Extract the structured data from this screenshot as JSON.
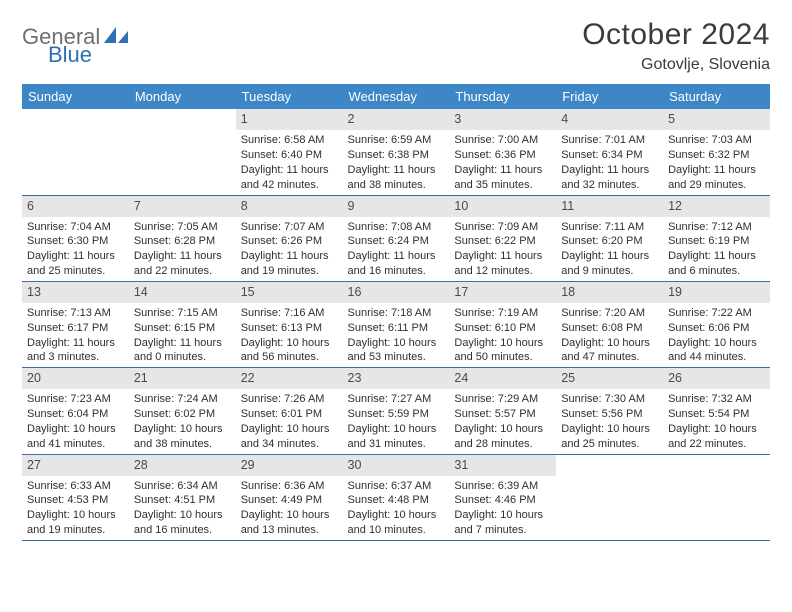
{
  "logo": {
    "part1": "General",
    "part2": "Blue"
  },
  "title": "October 2024",
  "subtitle": "Gotovlje, Slovenia",
  "colors": {
    "header_bg": "#3d87c7",
    "header_text": "#ffffff",
    "daynum_bg": "#e6e6e6",
    "row_border": "#3d6da3",
    "logo_gray": "#6f6f6f",
    "logo_blue": "#2f6fb3",
    "text": "#2f2f2f"
  },
  "day_headers": [
    "Sunday",
    "Monday",
    "Tuesday",
    "Wednesday",
    "Thursday",
    "Friday",
    "Saturday"
  ],
  "weeks": [
    [
      {
        "num": "",
        "lines": []
      },
      {
        "num": "",
        "lines": []
      },
      {
        "num": "1",
        "lines": [
          "Sunrise: 6:58 AM",
          "Sunset: 6:40 PM",
          "Daylight: 11 hours and 42 minutes."
        ]
      },
      {
        "num": "2",
        "lines": [
          "Sunrise: 6:59 AM",
          "Sunset: 6:38 PM",
          "Daylight: 11 hours and 38 minutes."
        ]
      },
      {
        "num": "3",
        "lines": [
          "Sunrise: 7:00 AM",
          "Sunset: 6:36 PM",
          "Daylight: 11 hours and 35 minutes."
        ]
      },
      {
        "num": "4",
        "lines": [
          "Sunrise: 7:01 AM",
          "Sunset: 6:34 PM",
          "Daylight: 11 hours and 32 minutes."
        ]
      },
      {
        "num": "5",
        "lines": [
          "Sunrise: 7:03 AM",
          "Sunset: 6:32 PM",
          "Daylight: 11 hours and 29 minutes."
        ]
      }
    ],
    [
      {
        "num": "6",
        "lines": [
          "Sunrise: 7:04 AM",
          "Sunset: 6:30 PM",
          "Daylight: 11 hours and 25 minutes."
        ]
      },
      {
        "num": "7",
        "lines": [
          "Sunrise: 7:05 AM",
          "Sunset: 6:28 PM",
          "Daylight: 11 hours and 22 minutes."
        ]
      },
      {
        "num": "8",
        "lines": [
          "Sunrise: 7:07 AM",
          "Sunset: 6:26 PM",
          "Daylight: 11 hours and 19 minutes."
        ]
      },
      {
        "num": "9",
        "lines": [
          "Sunrise: 7:08 AM",
          "Sunset: 6:24 PM",
          "Daylight: 11 hours and 16 minutes."
        ]
      },
      {
        "num": "10",
        "lines": [
          "Sunrise: 7:09 AM",
          "Sunset: 6:22 PM",
          "Daylight: 11 hours and 12 minutes."
        ]
      },
      {
        "num": "11",
        "lines": [
          "Sunrise: 7:11 AM",
          "Sunset: 6:20 PM",
          "Daylight: 11 hours and 9 minutes."
        ]
      },
      {
        "num": "12",
        "lines": [
          "Sunrise: 7:12 AM",
          "Sunset: 6:19 PM",
          "Daylight: 11 hours and 6 minutes."
        ]
      }
    ],
    [
      {
        "num": "13",
        "lines": [
          "Sunrise: 7:13 AM",
          "Sunset: 6:17 PM",
          "Daylight: 11 hours and 3 minutes."
        ]
      },
      {
        "num": "14",
        "lines": [
          "Sunrise: 7:15 AM",
          "Sunset: 6:15 PM",
          "Daylight: 11 hours and 0 minutes."
        ]
      },
      {
        "num": "15",
        "lines": [
          "Sunrise: 7:16 AM",
          "Sunset: 6:13 PM",
          "Daylight: 10 hours and 56 minutes."
        ]
      },
      {
        "num": "16",
        "lines": [
          "Sunrise: 7:18 AM",
          "Sunset: 6:11 PM",
          "Daylight: 10 hours and 53 minutes."
        ]
      },
      {
        "num": "17",
        "lines": [
          "Sunrise: 7:19 AM",
          "Sunset: 6:10 PM",
          "Daylight: 10 hours and 50 minutes."
        ]
      },
      {
        "num": "18",
        "lines": [
          "Sunrise: 7:20 AM",
          "Sunset: 6:08 PM",
          "Daylight: 10 hours and 47 minutes."
        ]
      },
      {
        "num": "19",
        "lines": [
          "Sunrise: 7:22 AM",
          "Sunset: 6:06 PM",
          "Daylight: 10 hours and 44 minutes."
        ]
      }
    ],
    [
      {
        "num": "20",
        "lines": [
          "Sunrise: 7:23 AM",
          "Sunset: 6:04 PM",
          "Daylight: 10 hours and 41 minutes."
        ]
      },
      {
        "num": "21",
        "lines": [
          "Sunrise: 7:24 AM",
          "Sunset: 6:02 PM",
          "Daylight: 10 hours and 38 minutes."
        ]
      },
      {
        "num": "22",
        "lines": [
          "Sunrise: 7:26 AM",
          "Sunset: 6:01 PM",
          "Daylight: 10 hours and 34 minutes."
        ]
      },
      {
        "num": "23",
        "lines": [
          "Sunrise: 7:27 AM",
          "Sunset: 5:59 PM",
          "Daylight: 10 hours and 31 minutes."
        ]
      },
      {
        "num": "24",
        "lines": [
          "Sunrise: 7:29 AM",
          "Sunset: 5:57 PM",
          "Daylight: 10 hours and 28 minutes."
        ]
      },
      {
        "num": "25",
        "lines": [
          "Sunrise: 7:30 AM",
          "Sunset: 5:56 PM",
          "Daylight: 10 hours and 25 minutes."
        ]
      },
      {
        "num": "26",
        "lines": [
          "Sunrise: 7:32 AM",
          "Sunset: 5:54 PM",
          "Daylight: 10 hours and 22 minutes."
        ]
      }
    ],
    [
      {
        "num": "27",
        "lines": [
          "Sunrise: 6:33 AM",
          "Sunset: 4:53 PM",
          "Daylight: 10 hours and 19 minutes."
        ]
      },
      {
        "num": "28",
        "lines": [
          "Sunrise: 6:34 AM",
          "Sunset: 4:51 PM",
          "Daylight: 10 hours and 16 minutes."
        ]
      },
      {
        "num": "29",
        "lines": [
          "Sunrise: 6:36 AM",
          "Sunset: 4:49 PM",
          "Daylight: 10 hours and 13 minutes."
        ]
      },
      {
        "num": "30",
        "lines": [
          "Sunrise: 6:37 AM",
          "Sunset: 4:48 PM",
          "Daylight: 10 hours and 10 minutes."
        ]
      },
      {
        "num": "31",
        "lines": [
          "Sunrise: 6:39 AM",
          "Sunset: 4:46 PM",
          "Daylight: 10 hours and 7 minutes."
        ]
      },
      {
        "num": "",
        "lines": []
      },
      {
        "num": "",
        "lines": []
      }
    ]
  ]
}
